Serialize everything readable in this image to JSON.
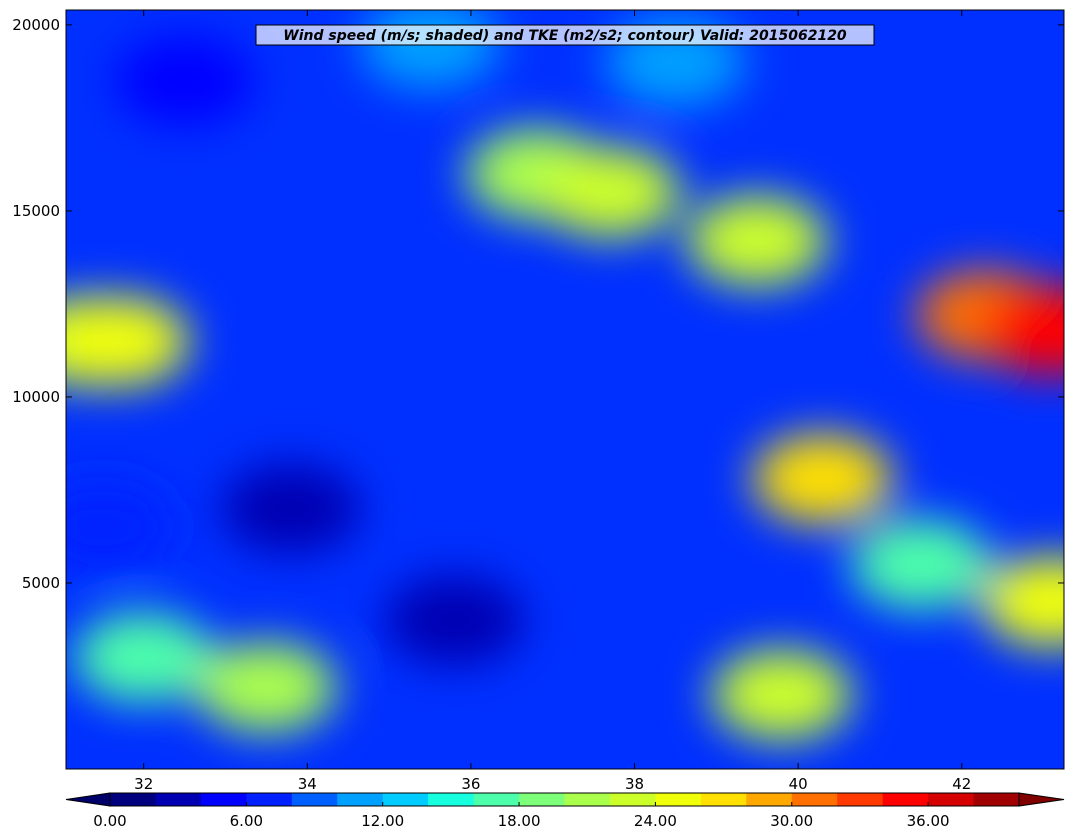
{
  "chart_data": {
    "type": "heatmap",
    "title": "Wind speed (m/s; shaded) and TKE (m2/s2; contour) Valid: 2015062120",
    "xlabel": "",
    "ylabel": "",
    "xlim": [
      31.05,
      43.25
    ],
    "ylim": [
      0,
      20400
    ],
    "x_ticks": [
      32,
      34,
      36,
      38,
      40,
      42
    ],
    "x_tick_labels": [
      "32",
      "34",
      "36",
      "38",
      "40",
      "42"
    ],
    "y_ticks": [
      5000,
      10000,
      15000,
      20000
    ],
    "y_tick_labels": [
      "5000",
      "10000",
      "15000",
      "20000"
    ],
    "colorbar": {
      "orientation": "horizontal",
      "placement": "bottom",
      "extend": "both",
      "levels": [
        0,
        2,
        4,
        6,
        8,
        10,
        12,
        14,
        16,
        18,
        20,
        22,
        24,
        26,
        28,
        30,
        32,
        34,
        36,
        38,
        40
      ],
      "tick_values": [
        0,
        6,
        12,
        18,
        24,
        30,
        36
      ],
      "tick_labels": [
        "0.00",
        "6.00",
        "12.00",
        "18.00",
        "24.00",
        "30.00",
        "36.00"
      ],
      "colors": [
        "#00007f",
        "#0000b2",
        "#0000ff",
        "#0020ff",
        "#0060ff",
        "#00a0ff",
        "#00ccff",
        "#18ffe0",
        "#4dffaa",
        "#7dff7a",
        "#aaff4d",
        "#ccff2a",
        "#f0ff0a",
        "#ffe000",
        "#ffa800",
        "#ff7000",
        "#ff3a00",
        "#ff0000",
        "#d50000",
        "#a00000"
      ],
      "under_color": "#00006a",
      "over_color": "#800000"
    },
    "grid": false,
    "field_summary": [
      {
        "x": 31.3,
        "y": 11500,
        "value": 22
      },
      {
        "x": 31.7,
        "y": 11500,
        "value": 24
      },
      {
        "x": 31.5,
        "y": 6500,
        "value": 6
      },
      {
        "x": 32.0,
        "y": 3000,
        "value": 16
      },
      {
        "x": 32.5,
        "y": 18500,
        "value": 4
      },
      {
        "x": 33.5,
        "y": 2200,
        "value": 20
      },
      {
        "x": 33.8,
        "y": 7000,
        "value": 2
      },
      {
        "x": 35.8,
        "y": 4000,
        "value": 2
      },
      {
        "x": 36.8,
        "y": 16000,
        "value": 20
      },
      {
        "x": 37.7,
        "y": 15500,
        "value": 22
      },
      {
        "x": 39.5,
        "y": 14200,
        "value": 22
      },
      {
        "x": 39.8,
        "y": 2000,
        "value": 22
      },
      {
        "x": 40.3,
        "y": 7800,
        "value": 26
      },
      {
        "x": 41.5,
        "y": 5500,
        "value": 16
      },
      {
        "x": 42.3,
        "y": 12200,
        "value": 30
      },
      {
        "x": 43.1,
        "y": 11800,
        "value": 34
      },
      {
        "x": 43.1,
        "y": 4500,
        "value": 24
      },
      {
        "x": 35.5,
        "y": 19500,
        "value": 10
      },
      {
        "x": 38.5,
        "y": 19000,
        "value": 10
      }
    ]
  }
}
